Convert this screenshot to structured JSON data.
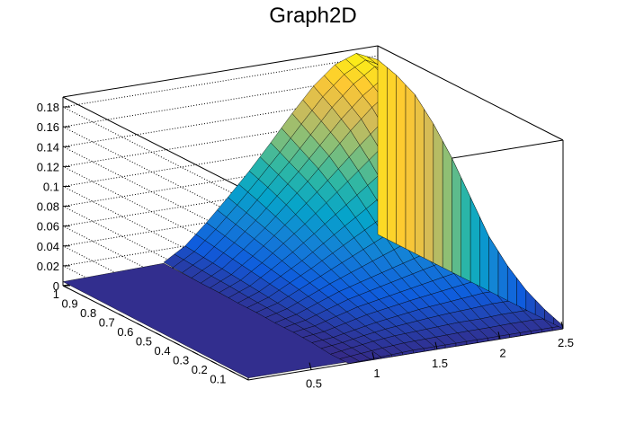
{
  "chart_data": {
    "type": "surface",
    "title": "Graph2D",
    "xlabel": "",
    "ylabel": "",
    "zlabel": "",
    "xlim": [
      0,
      2.5
    ],
    "ylim": [
      0,
      1
    ],
    "zlim": [
      0,
      0.19
    ],
    "x_ticks": [
      "0.5",
      "1",
      "1.5",
      "2",
      "2.5"
    ],
    "y_ticks": [
      "0.1",
      "0.2",
      "0.3",
      "0.4",
      "0.5",
      "0.6",
      "0.7",
      "0.8",
      "0.9",
      "1"
    ],
    "z_ticks": [
      "0",
      "0.02",
      "0.04",
      "0.06",
      "0.08",
      "0.1",
      "0.12",
      "0.14",
      "0.16",
      "0.18"
    ],
    "x_tick_values": [
      0.5,
      1,
      1.5,
      2,
      2.5
    ],
    "y_tick_values": [
      0.1,
      0.2,
      0.3,
      0.4,
      0.5,
      0.6,
      0.7,
      0.8,
      0.9,
      1
    ],
    "z_tick_values": [
      0,
      0.02,
      0.04,
      0.06,
      0.08,
      0.1,
      0.12,
      0.14,
      0.16,
      0.18
    ],
    "grid": true,
    "colormap": [
      "#352a87",
      "#0f5cdd",
      "#1481d6",
      "#06a4ca",
      "#2eb7a4",
      "#87bf77",
      "#d1bb59",
      "#fec832",
      "#f9fb0e"
    ],
    "mesh_color": "#000000",
    "data_region": {
      "x_min": 0.8,
      "x_max": 2.5,
      "y_min": 0,
      "y_max": 1
    },
    "z_grid_x": [
      0.8,
      0.97,
      1.14,
      1.31,
      1.48,
      1.65,
      1.82,
      1.99,
      2.16,
      2.33,
      2.5
    ],
    "z_grid_y": [
      0,
      0.1,
      0.2,
      0.3,
      0.4,
      0.5,
      0.6,
      0.7,
      0.8,
      0.9,
      1.0
    ],
    "z_grid": [
      [
        0.0,
        0.001,
        0.002,
        0.003,
        0.003,
        0.003,
        0.003,
        0.003,
        0.003,
        0.003,
        0.003
      ],
      [
        0.0,
        0.003,
        0.006,
        0.008,
        0.009,
        0.01,
        0.011,
        0.011,
        0.012,
        0.012,
        0.01
      ],
      [
        0.002,
        0.004,
        0.008,
        0.012,
        0.015,
        0.018,
        0.02,
        0.022,
        0.024,
        0.024,
        0.02
      ],
      [
        0.003,
        0.006,
        0.012,
        0.018,
        0.022,
        0.026,
        0.03,
        0.034,
        0.038,
        0.04,
        0.035
      ],
      [
        0.003,
        0.008,
        0.016,
        0.024,
        0.03,
        0.036,
        0.042,
        0.048,
        0.056,
        0.06,
        0.055
      ],
      [
        0.004,
        0.01,
        0.02,
        0.03,
        0.04,
        0.05,
        0.06,
        0.07,
        0.08,
        0.09,
        0.085
      ],
      [
        0.004,
        0.012,
        0.024,
        0.036,
        0.05,
        0.064,
        0.078,
        0.092,
        0.106,
        0.12,
        0.115
      ],
      [
        0.005,
        0.014,
        0.028,
        0.044,
        0.06,
        0.078,
        0.096,
        0.114,
        0.132,
        0.148,
        0.14
      ],
      [
        0.005,
        0.016,
        0.032,
        0.05,
        0.07,
        0.09,
        0.112,
        0.134,
        0.154,
        0.17,
        0.16
      ],
      [
        0.006,
        0.018,
        0.036,
        0.056,
        0.078,
        0.1,
        0.124,
        0.148,
        0.168,
        0.182,
        0.17
      ],
      [
        0.007,
        0.02,
        0.04,
        0.062,
        0.085,
        0.11,
        0.136,
        0.16,
        0.178,
        0.186,
        0.176
      ]
    ]
  }
}
